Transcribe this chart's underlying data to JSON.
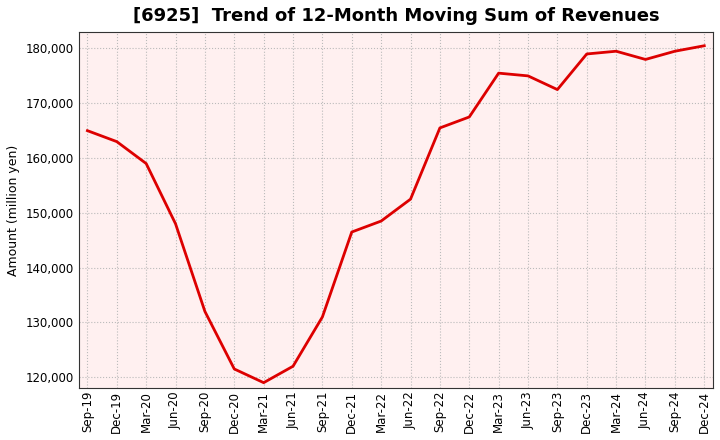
{
  "title": "[6925]  Trend of 12-Month Moving Sum of Revenues",
  "ylabel": "Amount (million yen)",
  "background_color": "#ffffff",
  "plot_bg_color": "#fff0f0",
  "line_color": "#dd0000",
  "grid_color": "#bbbbbb",
  "x_labels": [
    "Sep-19",
    "Dec-19",
    "Mar-20",
    "Jun-20",
    "Sep-20",
    "Dec-20",
    "Mar-21",
    "Jun-21",
    "Sep-21",
    "Dec-21",
    "Mar-22",
    "Jun-22",
    "Sep-22",
    "Dec-22",
    "Mar-23",
    "Jun-23",
    "Sep-23",
    "Dec-23",
    "Mar-24",
    "Jun-24",
    "Sep-24",
    "Dec-24"
  ],
  "y_values": [
    165000,
    163000,
    159000,
    148000,
    132000,
    121500,
    119000,
    122000,
    131000,
    146500,
    148500,
    152500,
    165500,
    167500,
    175500,
    175000,
    172500,
    179000,
    179500,
    178000,
    179500,
    180500
  ],
  "ylim": [
    118000,
    183000
  ],
  "yticks": [
    120000,
    130000,
    140000,
    150000,
    160000,
    170000,
    180000
  ],
  "title_fontsize": 13,
  "axis_fontsize": 9,
  "tick_fontsize": 8.5
}
